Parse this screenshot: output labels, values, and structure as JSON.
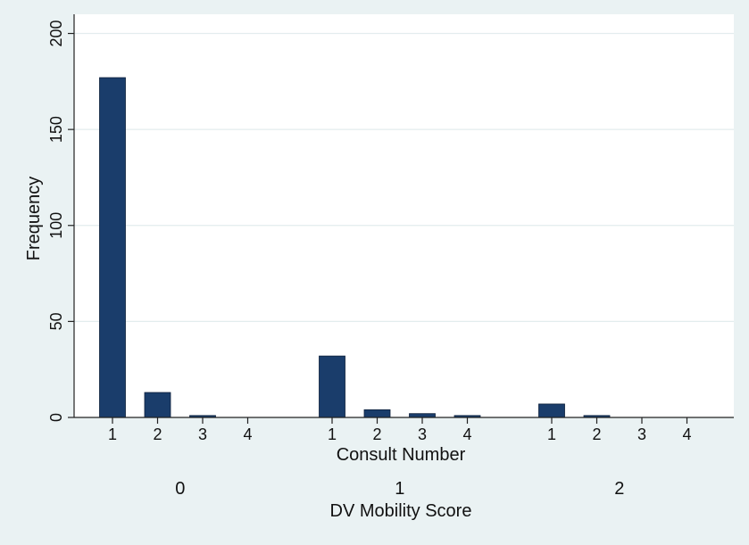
{
  "chart_data": {
    "type": "bar",
    "xlabel": "Consult Number",
    "group_axis_label": "DV Mobility Score",
    "ylabel": "Frequency",
    "ylim": [
      0,
      210
    ],
    "yticks": [
      0,
      50,
      100,
      150,
      200
    ],
    "grid": true,
    "colors": {
      "bar": "#1a3d6b",
      "background": "#eaf2f3",
      "plot": "#ffffff",
      "grid": "#e3ecee"
    },
    "groups": [
      {
        "label": "0",
        "categories": [
          "1",
          "2",
          "3",
          "4"
        ],
        "values": [
          177,
          13,
          1,
          0
        ]
      },
      {
        "label": "1",
        "categories": [
          "1",
          "2",
          "3",
          "4"
        ],
        "values": [
          32,
          4,
          2,
          1
        ]
      },
      {
        "label": "2",
        "categories": [
          "1",
          "2",
          "3",
          "4"
        ],
        "values": [
          7,
          1,
          0,
          0
        ]
      }
    ]
  }
}
